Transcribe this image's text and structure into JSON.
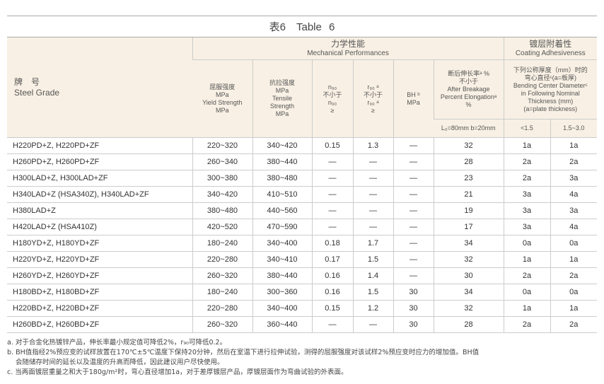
{
  "title": "表6　Table 6",
  "header": {
    "grade_cn": "牌　号",
    "grade_en": "Steel Grade",
    "mech_cn": "力学性能",
    "mech_en": "Mechanical Performances",
    "coat_cn": "镀层附着性",
    "coat_en": "Coating Adhesiveness",
    "yield": [
      "屈服强度",
      "MPa",
      "Yield Strength",
      "MPa"
    ],
    "tensile": [
      "抗拉强度",
      "MPa",
      "Tensile",
      "Strength",
      "MPa"
    ],
    "n90": [
      "n₉₀",
      "不小于",
      "n₉₀",
      "≥"
    ],
    "r90": [
      "r₉₀ ᵃ",
      "不小于",
      "r₉₀ ᵃ",
      "≥"
    ],
    "bh": [
      "BH ᵇ",
      "MPa"
    ],
    "elong": [
      "断后伸长率ᵃ %",
      "不小于",
      "After Breakage",
      "Percent Elongationᵃ",
      "%"
    ],
    "bend": [
      "下列公称厚度（mm）时的",
      "弯心直径ᶜ(a=板厚)",
      "Bending Center Diameterᶜ",
      "in Following Nominal",
      "Thickness (mm)",
      "(a=plate thickness)"
    ],
    "gauge": "L₀=80mm b=20mm",
    "thin": "<1.5",
    "thick": "1.5~3.0"
  },
  "rows": [
    [
      "H220PD+Z, H220PD+ZF",
      "220~320",
      "340~420",
      "0.15",
      "1.3",
      "—",
      "32",
      "1a",
      "1a"
    ],
    [
      "H260PD+Z, H260PD+ZF",
      "260~340",
      "380~440",
      "—",
      "—",
      "—",
      "28",
      "2a",
      "2a"
    ],
    [
      "H300LAD+Z, H300LAD+ZF",
      "300~380",
      "380~480",
      "—",
      "—",
      "—",
      "23",
      "2a",
      "3a"
    ],
    [
      "H340LAD+Z (HSA340Z), H340LAD+ZF",
      "340~420",
      "410~510",
      "—",
      "—",
      "—",
      "21",
      "3a",
      "4a"
    ],
    [
      "H380LAD+Z",
      "380~480",
      "440~560",
      "—",
      "—",
      "—",
      "19",
      "3a",
      "3a"
    ],
    [
      "H420LAD+Z (HSA410Z)",
      "420~520",
      "470~590",
      "—",
      "—",
      "—",
      "17",
      "3a",
      "4a"
    ],
    [
      "H180YD+Z, H180YD+ZF",
      "180~240",
      "340~400",
      "0.18",
      "1.7",
      "—",
      "34",
      "0a",
      "0a"
    ],
    [
      "H220YD+Z, H220YD+ZF",
      "220~280",
      "340~410",
      "0.17",
      "1.5",
      "—",
      "32",
      "1a",
      "1a"
    ],
    [
      "H260YD+Z, H260YD+ZF",
      "260~320",
      "380~440",
      "0.16",
      "1.4",
      "—",
      "30",
      "2a",
      "2a"
    ],
    [
      "H180BD+Z, H180BD+ZF",
      "180~240",
      "300~360",
      "0.16",
      "1.5",
      "30",
      "34",
      "0a",
      "0a"
    ],
    [
      "H220BD+Z, H220BD+ZF",
      "220~280",
      "340~400",
      "0.15",
      "1.2",
      "30",
      "32",
      "1a",
      "1a"
    ],
    [
      "H260BD+Z, H260BD+ZF",
      "260~320",
      "360~440",
      "—",
      "—",
      "30",
      "28",
      "2a",
      "2a"
    ]
  ],
  "notes": [
    "a. 对于合金化热镀锌产品，伸长率最小规定值可降低2%，r₉₀可降低0.2。",
    "b. BH值指经2%预应变的试样放置在170℃±5℃温度下保持20分钟，然后在室温下进行拉伸试验，测得的屈服强度对该试样2%预应变时应力的增加值。BH值",
    "会随储存时间的延长以及温度的升高而降低，因此建议用户尽快使用。",
    "c. 当两面镀层重量之和大于180g/m²时，弯心直径增加1a，对于差厚镀层产品，厚镀层面作为弯曲试验的外表面。"
  ]
}
